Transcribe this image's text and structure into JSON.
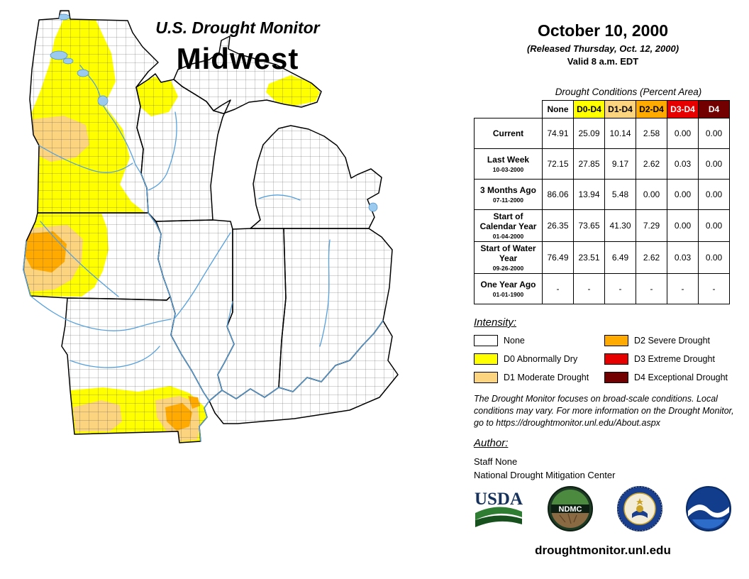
{
  "header": {
    "title": "U.S. Drought Monitor",
    "region": "Midwest",
    "date": "October 10, 2000",
    "released": "(Released Thursday, Oct. 12, 2000)",
    "valid": "Valid 8 a.m. EDT"
  },
  "table": {
    "title": "Drought Conditions (Percent Area)",
    "columns": [
      {
        "label": "None",
        "bg": "#FFFFFF",
        "fg": "#000000"
      },
      {
        "label": "D0-D4",
        "bg": "#FFFF00",
        "fg": "#000000"
      },
      {
        "label": "D1-D4",
        "bg": "#FCD37F",
        "fg": "#000000"
      },
      {
        "label": "D2-D4",
        "bg": "#FFAA00",
        "fg": "#000000"
      },
      {
        "label": "D3-D4",
        "bg": "#E60000",
        "fg": "#FFFFFF"
      },
      {
        "label": "D4",
        "bg": "#730000",
        "fg": "#FFFFFF"
      }
    ],
    "rows": [
      {
        "label": "Current",
        "sublabel": "",
        "values": [
          "74.91",
          "25.09",
          "10.14",
          "2.58",
          "0.00",
          "0.00"
        ]
      },
      {
        "label": "Last Week",
        "sublabel": "10-03-2000",
        "values": [
          "72.15",
          "27.85",
          "9.17",
          "2.62",
          "0.03",
          "0.00"
        ]
      },
      {
        "label": "3 Months Ago",
        "sublabel": "07-11-2000",
        "values": [
          "86.06",
          "13.94",
          "5.48",
          "0.00",
          "0.00",
          "0.00"
        ]
      },
      {
        "label": "Start of Calendar Year",
        "sublabel": "01-04-2000",
        "values": [
          "26.35",
          "73.65",
          "41.30",
          "7.29",
          "0.00",
          "0.00"
        ]
      },
      {
        "label": "Start of Water Year",
        "sublabel": "09-26-2000",
        "values": [
          "76.49",
          "23.51",
          "6.49",
          "2.62",
          "0.03",
          "0.00"
        ]
      },
      {
        "label": "One Year Ago",
        "sublabel": "01-01-1900",
        "values": [
          "-",
          "-",
          "-",
          "-",
          "-",
          "-"
        ]
      }
    ]
  },
  "legend": {
    "title": "Intensity:",
    "items": [
      {
        "code": "none",
        "label": "None",
        "color": "#FFFFFF"
      },
      {
        "code": "d0",
        "label": "D0 Abnormally Dry",
        "color": "#FFFF00"
      },
      {
        "code": "d1",
        "label": "D1 Moderate Drought",
        "color": "#FCD37F"
      },
      {
        "code": "d2",
        "label": "D2 Severe Drought",
        "color": "#FFAA00"
      },
      {
        "code": "d3",
        "label": "D3 Extreme Drought",
        "color": "#E60000"
      },
      {
        "code": "d4",
        "label": "D4 Exceptional Drought",
        "color": "#730000"
      }
    ]
  },
  "disclaimer": "The Drought Monitor focuses on broad-scale conditions. Local conditions may vary. For more information on the Drought Monitor, go to https://droughtmonitor.unl.edu/About.aspx",
  "author": {
    "heading": "Author:",
    "name": "Staff None",
    "organization": "National Drought Mitigation Center"
  },
  "logos": {
    "usda": "USDA",
    "ndmc": "NDMC",
    "commerce": "U.S. Department of Commerce seal",
    "noaa": "NOAA"
  },
  "footer": {
    "url": "droughtmonitor.unl.edu"
  }
}
